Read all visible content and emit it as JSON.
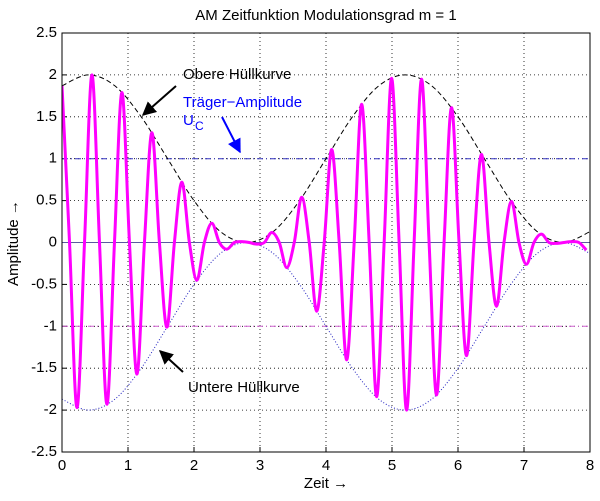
{
  "chart_data": {
    "type": "line",
    "title": "AM Zeitfunktion Modulationsgrad m = 1",
    "xlabel": "Zeit →",
    "ylabel": "Amplitude →",
    "xlim": [
      0,
      8
    ],
    "ylim": [
      -2.5,
      2.5
    ],
    "xticks": [
      0,
      1,
      2,
      3,
      4,
      5,
      6,
      7,
      8
    ],
    "yticks": [
      -2.5,
      -2,
      -1.5,
      -1,
      -0.5,
      0,
      0.5,
      1,
      1.5,
      2,
      2.5
    ],
    "grid": true,
    "hlines": [
      {
        "value": 0,
        "color": "#5a5aa0",
        "style": "solid"
      },
      {
        "value": 1,
        "color": "#3030c0",
        "style": "dashdot"
      },
      {
        "value": -1,
        "color": "#d060d0",
        "style": "dashdot"
      }
    ],
    "series": [
      {
        "color": "#ff00ff",
        "style": "solid",
        "width": 3,
        "x": [
          0,
          0.114,
          0.227,
          0.341,
          0.454,
          0.568,
          0.681,
          0.795,
          0.908,
          1.022,
          1.135,
          1.249,
          1.362,
          1.476,
          1.589,
          1.703,
          1.816,
          1.93,
          2.043,
          2.157,
          2.27,
          2.384,
          2.497,
          2.611,
          2.724,
          2.838,
          2.951,
          3.065,
          3.178,
          3.292,
          3.405,
          3.519,
          3.632,
          3.746,
          3.859,
          3.973,
          4.086,
          4.2,
          4.313,
          4.427,
          4.54,
          4.654,
          4.767,
          4.881,
          4.994,
          5.108,
          5.221,
          5.335,
          5.448,
          5.562,
          5.675,
          5.789,
          5.902,
          6.016,
          6.129,
          6.243,
          6.356,
          6.47,
          6.583,
          6.697,
          6.81,
          6.924,
          7.037,
          7.151,
          7.264,
          7.378,
          7.491,
          7.605,
          7.718,
          7.832,
          7.945
        ],
        "values": [
          1.87,
          0,
          -1.97,
          0,
          2.0,
          0,
          -1.93,
          0,
          1.79,
          0,
          -1.57,
          0,
          1.31,
          0,
          -1.01,
          0,
          0.72,
          0,
          -0.45,
          0,
          0.23,
          0,
          -0.08,
          0,
          0.01,
          0,
          -0.02,
          0,
          0.12,
          0,
          -0.3,
          0,
          0.54,
          0,
          -0.82,
          0,
          1.11,
          0,
          -1.4,
          0,
          1.65,
          0,
          -1.84,
          0,
          1.96,
          0,
          -2.0,
          0,
          1.95,
          0,
          -1.82,
          0,
          1.61,
          0,
          -1.35,
          0,
          1.05,
          0,
          -0.76,
          0,
          0.49,
          0,
          -0.26,
          0,
          0.1,
          0,
          -0.01,
          0,
          0.01,
          0,
          -0.09
        ]
      },
      {
        "color": "#000000",
        "style": "dashed",
        "width": 1,
        "x": [
          0,
          0.4,
          0.8,
          1.2,
          1.6,
          2.0,
          2.4,
          2.8,
          3.2,
          3.6,
          4.0,
          4.4,
          4.8,
          5.2,
          5.6,
          6.0,
          6.4,
          6.8,
          7.2,
          7.6,
          8.0
        ],
        "values": [
          1.87,
          2,
          1.87,
          1.5,
          1.0,
          0.5,
          0.13,
          0,
          0.13,
          0.5,
          1,
          1.5,
          1.87,
          2,
          1.87,
          1.5,
          1.0,
          0.5,
          0.13,
          0,
          0.13
        ]
      },
      {
        "color": "#2020c0",
        "style": "dotted",
        "width": 1,
        "x": [
          0,
          0.4,
          0.8,
          1.2,
          1.6,
          2.0,
          2.4,
          2.8,
          3.2,
          3.6,
          4.0,
          4.4,
          4.8,
          5.2,
          5.6,
          6.0,
          6.4,
          6.8,
          7.2,
          7.6,
          8.0
        ],
        "values": [
          -1.87,
          -2,
          -1.87,
          -1.5,
          -1.0,
          -0.5,
          -0.13,
          0,
          -0.13,
          -0.5,
          -1,
          -1.5,
          -1.87,
          -2,
          -1.87,
          -1.5,
          -1.0,
          -0.5,
          -0.13,
          0,
          -0.13
        ]
      }
    ],
    "annotations": [
      {
        "text": "Obere Hüllkurve",
        "color": "#000000"
      },
      {
        "text": "Träger−Amplitude",
        "color": "#0000ff"
      },
      {
        "text": "U",
        "sub": "C",
        "color": "#0000ff"
      },
      {
        "text": "Untere Hüllkurve",
        "color": "#000000"
      }
    ]
  }
}
